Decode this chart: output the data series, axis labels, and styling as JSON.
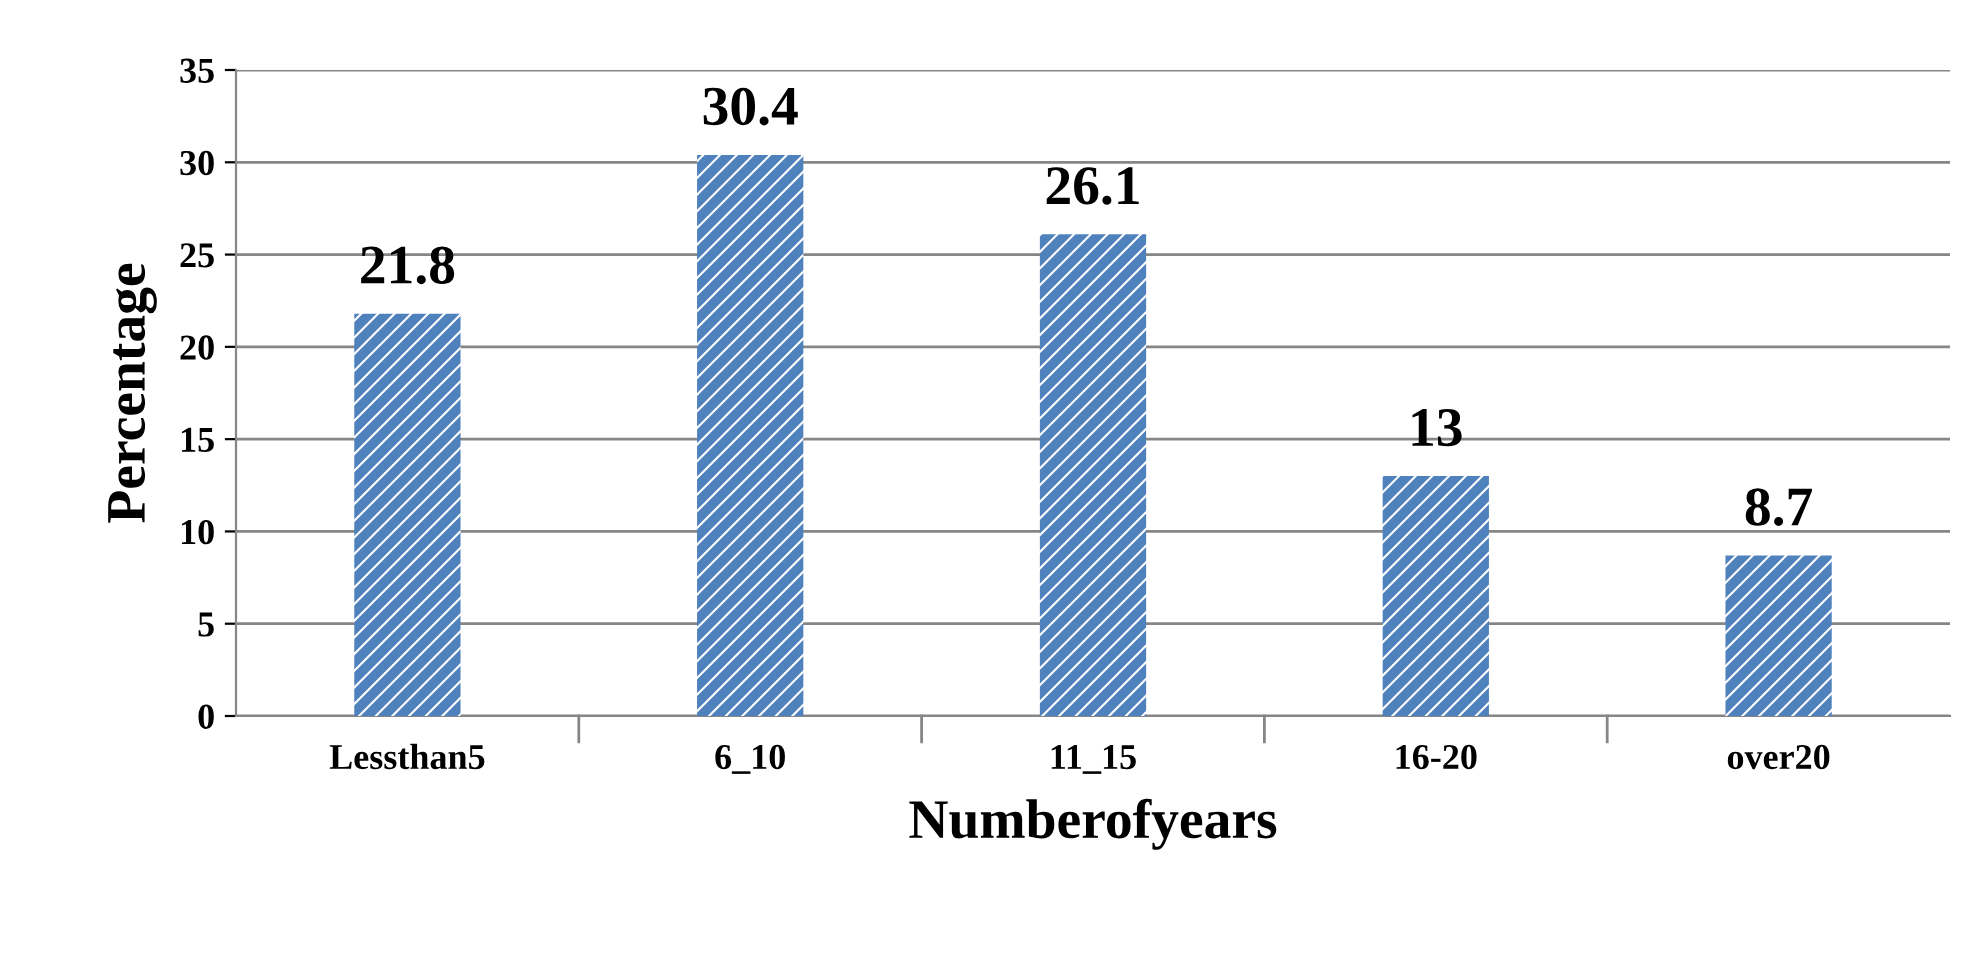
{
  "chart_data": {
    "type": "bar",
    "categories": [
      "Lessthan5",
      "6_10",
      "11_15",
      "16-20",
      "over20"
    ],
    "values": [
      21.8,
      30.4,
      26.1,
      13,
      8.7
    ],
    "color": "#4f81bd",
    "xlabel": "Numberofyears",
    "ylabel": "Percentage",
    "ylim": [
      0,
      35
    ],
    "yticks": [
      0,
      5,
      10,
      15,
      20,
      25,
      30,
      35
    ],
    "grid": "y",
    "data_labels": true
  }
}
